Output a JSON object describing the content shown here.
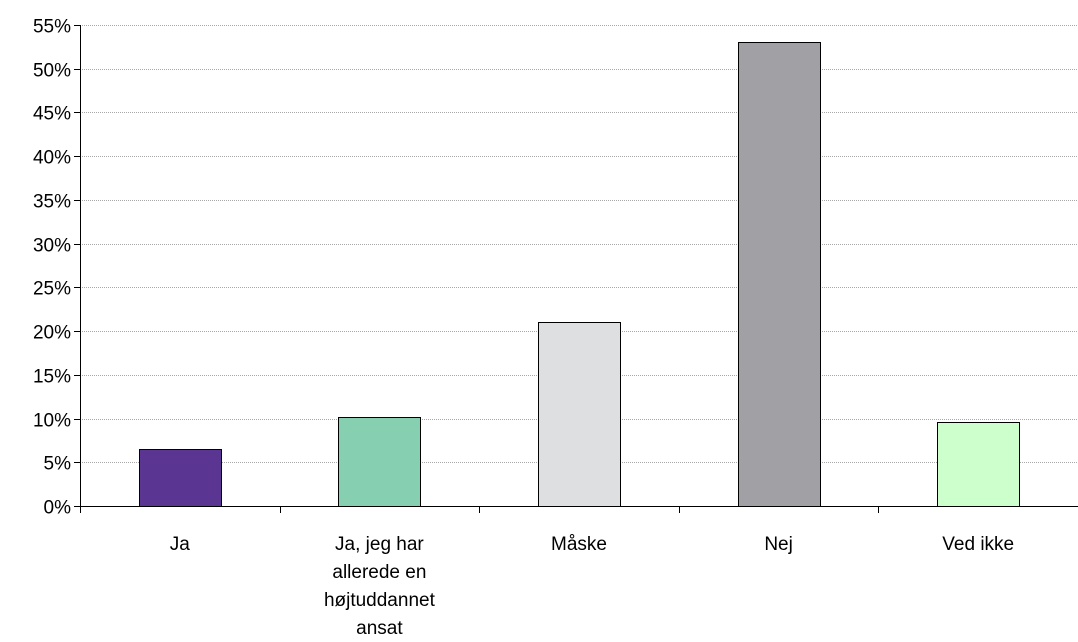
{
  "chart_data": {
    "type": "bar",
    "title": "",
    "xlabel": "",
    "ylabel": "",
    "categories": [
      "Ja",
      "Ja, jeg har allerede en højtuddannet ansat",
      "Måske",
      "Nej",
      "Ved ikke"
    ],
    "category_label_lines": [
      [
        "Ja"
      ],
      [
        "Ja, jeg har",
        "allerede en",
        "højtuddannet",
        "ansat"
      ],
      [
        "Måske"
      ],
      [
        "Nej"
      ],
      [
        "Ved ikke"
      ]
    ],
    "values": [
      6.5,
      10.2,
      21,
      53,
      9.6
    ],
    "value_format": "percent",
    "ylim": [
      0,
      55
    ],
    "y_ticks": [
      0,
      5,
      10,
      15,
      20,
      25,
      30,
      35,
      40,
      45,
      50,
      55
    ],
    "y_tick_labels": [
      "0%",
      "5%",
      "10%",
      "15%",
      "20%",
      "25%",
      "30%",
      "35%",
      "40%",
      "45%",
      "50%",
      "55%"
    ],
    "grid": true,
    "legend": "none",
    "bar_colors": [
      "#5B3592",
      "#86CFB0",
      "#DEDFE1",
      "#A0A0A5",
      "#CCFFCC"
    ],
    "bar_edge_color": "#000000",
    "grid_color": "#A8A8A8"
  }
}
